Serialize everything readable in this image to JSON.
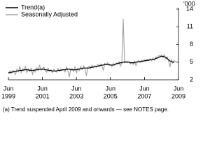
{
  "chart_data": {
    "type": "line",
    "y_axis_label": "'000",
    "footnote": "(a) Trend suspended April 2009 and onwards — see NOTES page.",
    "x": [
      "1999-06",
      "1999-07",
      "1999-08",
      "1999-09",
      "1999-10",
      "1999-11",
      "1999-12",
      "2000-01",
      "2000-02",
      "2000-03",
      "2000-04",
      "2000-05",
      "2000-06",
      "2000-07",
      "2000-08",
      "2000-09",
      "2000-10",
      "2000-11",
      "2000-12",
      "2001-01",
      "2001-02",
      "2001-03",
      "2001-04",
      "2001-05",
      "2001-06",
      "2001-07",
      "2001-08",
      "2001-09",
      "2001-10",
      "2001-11",
      "2001-12",
      "2002-01",
      "2002-02",
      "2002-03",
      "2002-04",
      "2002-05",
      "2002-06",
      "2002-07",
      "2002-08",
      "2002-09",
      "2002-10",
      "2002-11",
      "2002-12",
      "2003-01",
      "2003-02",
      "2003-03",
      "2003-04",
      "2003-05",
      "2003-06",
      "2003-07",
      "2003-08",
      "2003-09",
      "2003-10",
      "2003-11",
      "2003-12",
      "2004-01",
      "2004-02",
      "2004-03",
      "2004-04",
      "2004-05",
      "2004-06",
      "2004-07",
      "2004-08",
      "2004-09",
      "2004-10",
      "2004-11",
      "2004-12",
      "2005-01",
      "2005-02",
      "2005-03",
      "2005-04",
      "2005-05",
      "2005-06",
      "2005-07",
      "2005-08",
      "2005-09",
      "2005-10",
      "2005-11",
      "2005-12",
      "2006-01",
      "2006-02",
      "2006-03",
      "2006-04",
      "2006-05",
      "2006-06",
      "2006-07",
      "2006-08",
      "2006-09",
      "2006-10",
      "2006-11",
      "2006-12",
      "2007-01",
      "2007-02",
      "2007-03",
      "2007-04",
      "2007-05",
      "2007-06",
      "2007-07",
      "2007-08",
      "2007-09",
      "2007-10",
      "2007-11",
      "2007-12",
      "2008-01",
      "2008-02",
      "2008-03",
      "2008-04",
      "2008-05",
      "2008-06",
      "2008-07",
      "2008-08",
      "2008-09",
      "2008-10",
      "2008-11",
      "2008-12",
      "2009-01",
      "2009-02",
      "2009-03",
      "2009-04",
      "2009-05"
    ],
    "series": [
      {
        "name": "Trend(a)",
        "color": "#000000",
        "width": 1.2,
        "values": [
          3.2,
          3.2,
          3.3,
          3.3,
          3.4,
          3.4,
          3.5,
          3.5,
          3.6,
          3.6,
          3.6,
          3.7,
          3.7,
          3.7,
          3.7,
          3.6,
          3.6,
          3.6,
          3.6,
          3.7,
          3.7,
          3.7,
          3.8,
          3.8,
          3.8,
          3.8,
          3.7,
          3.7,
          3.6,
          3.6,
          3.6,
          3.5,
          3.5,
          3.5,
          3.5,
          3.6,
          3.6,
          3.6,
          3.7,
          3.7,
          3.7,
          3.8,
          3.8,
          3.8,
          3.7,
          3.7,
          3.7,
          3.7,
          3.7,
          3.8,
          3.8,
          3.9,
          3.9,
          4.0,
          4.0,
          4.0,
          4.0,
          4.0,
          4.1,
          4.1,
          4.2,
          4.2,
          4.3,
          4.3,
          4.4,
          4.4,
          4.5,
          4.5,
          4.6,
          4.6,
          4.6,
          4.6,
          4.5,
          4.5,
          4.5,
          4.6,
          4.7,
          4.8,
          4.8,
          4.9,
          4.9,
          5.0,
          5.0,
          5.0,
          5.0,
          5.0,
          4.9,
          4.9,
          4.9,
          4.9,
          5.0,
          5.0,
          5.1,
          5.1,
          5.1,
          5.2,
          5.2,
          5.3,
          5.3,
          5.3,
          5.4,
          5.4,
          5.4,
          5.5,
          5.6,
          5.7,
          5.8,
          5.9,
          6.0,
          6.0,
          5.9,
          5.8,
          5.6,
          5.4,
          5.2,
          5.1,
          5.0,
          5.0,
          null,
          null
        ]
      },
      {
        "name": "Seasonally Adjusted",
        "color": "#a6a6a6",
        "width": 1.2,
        "values": [
          3.0,
          3.5,
          3.1,
          3.6,
          3.4,
          2.9,
          3.8,
          3.3,
          4.3,
          3.2,
          3.9,
          3.5,
          4.3,
          3.2,
          3.9,
          3.4,
          4.0,
          2.9,
          3.7,
          3.3,
          4.1,
          3.6,
          4.5,
          3.6,
          3.9,
          4.2,
          3.5,
          3.3,
          4.0,
          3.4,
          3.7,
          3.2,
          3.8,
          3.4,
          3.3,
          3.9,
          3.4,
          3.9,
          3.6,
          3.8,
          3.3,
          4.2,
          3.5,
          2.5,
          3.8,
          3.9,
          3.4,
          4.2,
          3.2,
          4.0,
          3.5,
          4.3,
          3.7,
          4.4,
          3.9,
          2.7,
          4.1,
          4.3,
          3.9,
          4.5,
          4.0,
          4.4,
          4.1,
          4.6,
          4.2,
          4.7,
          4.4,
          3.6,
          4.8,
          4.5,
          4.9,
          4.4,
          4.6,
          4.2,
          4.8,
          4.4,
          4.9,
          4.6,
          5.1,
          4.3,
          4.8,
          12.3,
          4.9,
          5.2,
          4.9,
          5.1,
          4.7,
          5.0,
          4.6,
          5.2,
          4.4,
          5.1,
          5.3,
          4.9,
          5.4,
          5.0,
          5.4,
          5.1,
          5.5,
          5.3,
          5.6,
          5.2,
          5.7,
          5.3,
          5.9,
          5.6,
          6.1,
          6.0,
          6.2,
          5.7,
          6.3,
          5.5,
          5.9,
          5.2,
          4.2,
          5.5,
          4.8,
          5.3,
          5.0,
          5.1
        ]
      }
    ],
    "xlim": [
      "1999-06",
      "2009-06"
    ],
    "xticks": [
      {
        "value": "1999-06",
        "label": "Jun",
        "year": "1999"
      },
      {
        "value": "2001-06",
        "label": "Jun",
        "year": "2001"
      },
      {
        "value": "2003-06",
        "label": "Jun",
        "year": "2003"
      },
      {
        "value": "2005-06",
        "label": "Jun",
        "year": "2005"
      },
      {
        "value": "2007-06",
        "label": "Jun",
        "year": "2007"
      },
      {
        "value": "2009-06",
        "label": "Jun",
        "year": "2009"
      }
    ],
    "ylim": [
      2,
      14
    ],
    "yticks": [
      2,
      5,
      8,
      11,
      14
    ],
    "y_axis_side": "right",
    "grid": false,
    "legend": "top-left"
  }
}
